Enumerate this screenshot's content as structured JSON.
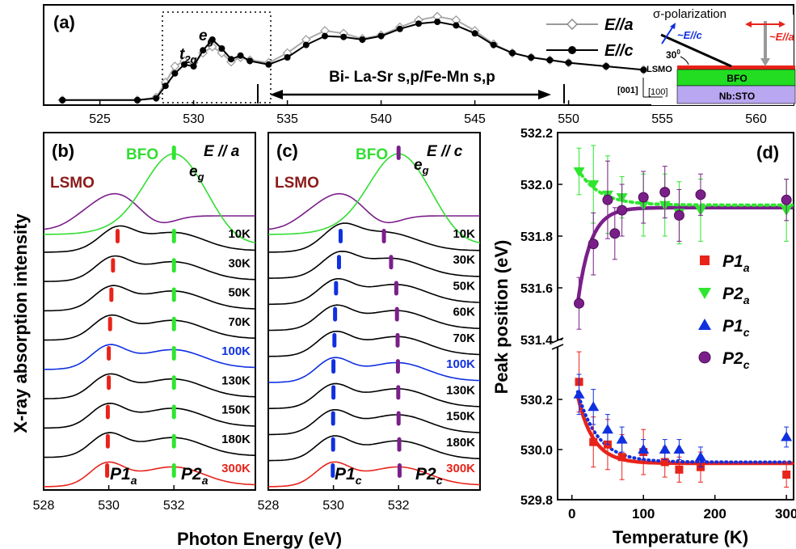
{
  "colors": {
    "black": "#000000",
    "lsmo": "#7a1f8a",
    "lsmo_label": "#8b1a1a",
    "bfo": "#33dd33",
    "red": "#e8231a",
    "green_mark": "#2ee62e",
    "blue": "#1030e0",
    "purple": "#7a1f8a",
    "grey": "#999999",
    "bfo_layer": "#22dd22",
    "sto_layer": "#b9a7f2",
    "film_red": "#e8231a"
  },
  "text": {
    "ylabel_main": "X-ray absorption intensity",
    "xlabel_main": "Photon Energy (eV)"
  },
  "chart_data": [
    {
      "id": "a",
      "type": "line",
      "panel_label": "(a)",
      "xlim": [
        522,
        562
      ],
      "x_ticks": [
        525,
        530,
        535,
        540,
        545,
        550,
        555,
        560
      ],
      "x_tick_labels": [
        "525",
        "530",
        "535",
        "540",
        "545",
        "550",
        "555",
        "560"
      ],
      "series": [
        {
          "name": "E//a",
          "x": [
            523,
            527,
            528,
            528.5,
            529,
            529.5,
            530,
            530.5,
            531,
            531.5,
            532,
            532.5,
            533,
            534,
            535,
            536,
            537,
            538,
            539,
            540,
            541,
            542,
            543,
            544,
            545,
            546,
            547,
            548,
            549,
            550,
            552,
            554
          ],
          "y": [
            0.02,
            0.02,
            0.05,
            0.22,
            0.4,
            0.46,
            0.44,
            0.55,
            0.62,
            0.55,
            0.45,
            0.5,
            0.47,
            0.44,
            0.55,
            0.7,
            0.8,
            0.77,
            0.71,
            0.75,
            0.84,
            0.92,
            0.96,
            0.92,
            0.8,
            0.65,
            0.55,
            0.5,
            0.47,
            0.44,
            0.4,
            0.36
          ]
        },
        {
          "name": "E//c",
          "x": [
            523,
            527,
            528,
            528.5,
            529,
            529.5,
            530,
            530.5,
            531,
            531.5,
            532,
            532.5,
            533,
            534,
            535,
            536,
            537,
            538,
            539,
            540,
            541,
            542,
            543,
            544,
            545,
            546,
            547,
            548,
            549,
            550,
            552,
            554
          ],
          "y": [
            0.02,
            0.02,
            0.04,
            0.18,
            0.32,
            0.42,
            0.4,
            0.58,
            0.7,
            0.6,
            0.48,
            0.52,
            0.46,
            0.42,
            0.5,
            0.64,
            0.74,
            0.73,
            0.7,
            0.74,
            0.82,
            0.88,
            0.9,
            0.86,
            0.77,
            0.64,
            0.55,
            0.5,
            0.47,
            0.44,
            0.4,
            0.36
          ]
        }
      ],
      "annotations": {
        "t2g_main": "t",
        "t2g_sub": "2g",
        "eg_main": "e",
        "eg_sub": "g",
        "range_text": "Bi- La-Sr s,p/Fe-Mn s,p",
        "legend_a": "E//a",
        "legend_c": "E//c"
      },
      "inset": {
        "sigma": "σ-polarization",
        "e_c": "~E//c",
        "e_a": "~E//a",
        "angle": "30",
        "angle_sup": "0",
        "lsmo": "LSMO",
        "bfo": "BFO",
        "sto": "Nb:STO",
        "dir_001": "[001]",
        "dir_100": "[100]"
      }
    },
    {
      "id": "b",
      "type": "line",
      "panel_label": "(b)",
      "title": "E // a",
      "xlim": [
        528,
        534.5
      ],
      "x_ticks": [
        528,
        530,
        532
      ],
      "x_tick_labels": [
        "528",
        "530",
        "532"
      ],
      "ref_labels": {
        "lsmo": "LSMO",
        "bfo": "BFO",
        "eg_main": "e",
        "eg_sub": "g"
      },
      "temperatures": [
        "10K",
        "30K",
        "50K",
        "70K",
        "100K",
        "130K",
        "150K",
        "180K",
        "300K"
      ],
      "p1_positions": [
        530.27,
        530.13,
        530.08,
        530.04,
        530.0,
        530.0,
        529.97,
        529.97,
        529.95
      ],
      "p2_positions": [
        532.0,
        532.0,
        532.0,
        532.0,
        532.0,
        532.0,
        532.0,
        532.0,
        532.0
      ],
      "p1_main": "P1",
      "p1_sub": "a",
      "p2_main": "P2",
      "p2_sub": "a"
    },
    {
      "id": "c",
      "type": "line",
      "panel_label": "(c)",
      "title": "E // c",
      "xlim": [
        528,
        534.5
      ],
      "x_ticks": [
        528,
        530,
        532
      ],
      "x_tick_labels": [
        "528",
        "530",
        "532"
      ],
      "ref_labels": {
        "lsmo": "LSMO",
        "bfo": "BFO",
        "eg_main": "e",
        "eg_sub": "g"
      },
      "temperatures": [
        "10K",
        "30K",
        "50K",
        "60K",
        "70K",
        "100K",
        "130K",
        "150K",
        "180K",
        "300K"
      ],
      "p1_positions": [
        530.22,
        530.17,
        530.08,
        530.05,
        530.03,
        530.0,
        530.0,
        529.99,
        529.99,
        529.98
      ],
      "p2_positions": [
        531.55,
        531.77,
        531.93,
        531.95,
        531.97,
        531.98,
        531.99,
        532.0,
        532.02,
        532.03
      ],
      "p1_main": "P1",
      "p1_sub": "c",
      "p2_main": "P2",
      "p2_sub": "c"
    },
    {
      "id": "d",
      "type": "scatter",
      "panel_label": "(d)",
      "xlabel": "Temperature (K)",
      "ylabel": "Peak position (eV)",
      "xlim": [
        -20,
        310
      ],
      "x_ticks": [
        0,
        100,
        200,
        300
      ],
      "x_tick_labels": [
        "0",
        "100",
        "200",
        "300"
      ],
      "upper_ylim": [
        531.4,
        532.2
      ],
      "upper_ticks": [
        531.4,
        531.6,
        531.8,
        532.0,
        532.2
      ],
      "upper_tick_labels": [
        "531.4",
        "531.6",
        "531.8",
        "532.0",
        "532.2"
      ],
      "lower_ylim": [
        529.8,
        530.4
      ],
      "lower_ticks": [
        529.8,
        530.0,
        530.2
      ],
      "lower_tick_labels": [
        "529.8",
        "530.0",
        "530.2"
      ],
      "series": [
        {
          "name_main": "P1",
          "name_sub": "a",
          "marker": "square",
          "axis": "lower",
          "x": [
            10,
            30,
            50,
            70,
            100,
            130,
            150,
            180,
            300
          ],
          "y": [
            530.27,
            530.03,
            530.02,
            529.97,
            529.99,
            529.95,
            529.92,
            529.93,
            529.9
          ],
          "err": [
            0.12,
            0.1,
            0.1,
            0.09,
            0.09,
            0.06,
            0.05,
            0.06,
            0.05
          ]
        },
        {
          "name_main": "P2",
          "name_sub": "a",
          "marker": "triangle-down",
          "axis": "upper",
          "x": [
            10,
            30,
            50,
            70,
            100,
            130,
            150,
            180,
            300
          ],
          "y": [
            532.05,
            532.0,
            531.96,
            531.95,
            531.92,
            531.92,
            531.89,
            531.9,
            531.9
          ],
          "err": [
            0.09,
            0.15,
            0.15,
            0.08,
            0.12,
            0.12,
            0.12,
            0.12,
            0.12
          ]
        },
        {
          "name_main": "P1",
          "name_sub": "c",
          "marker": "triangle-up",
          "axis": "lower",
          "x": [
            10,
            30,
            50,
            70,
            100,
            130,
            150,
            180,
            300
          ],
          "y": [
            530.22,
            530.17,
            530.08,
            530.04,
            530.0,
            530.0,
            530.0,
            529.97,
            530.05
          ],
          "err": [
            0.08,
            0.07,
            0.06,
            0.05,
            0.04,
            0.04,
            0.04,
            0.04,
            0.04
          ]
        },
        {
          "name_main": "P2",
          "name_sub": "c",
          "marker": "circle",
          "axis": "upper",
          "x": [
            10,
            30,
            50,
            60,
            70,
            100,
            130,
            150,
            180,
            300
          ],
          "y": [
            531.54,
            531.77,
            531.94,
            531.81,
            531.9,
            531.95,
            531.97,
            531.88,
            531.96,
            531.94
          ],
          "err": [
            0.1,
            0.12,
            0.15,
            0.1,
            0.1,
            0.1,
            0.1,
            0.1,
            0.08,
            0.08
          ]
        }
      ]
    }
  ]
}
